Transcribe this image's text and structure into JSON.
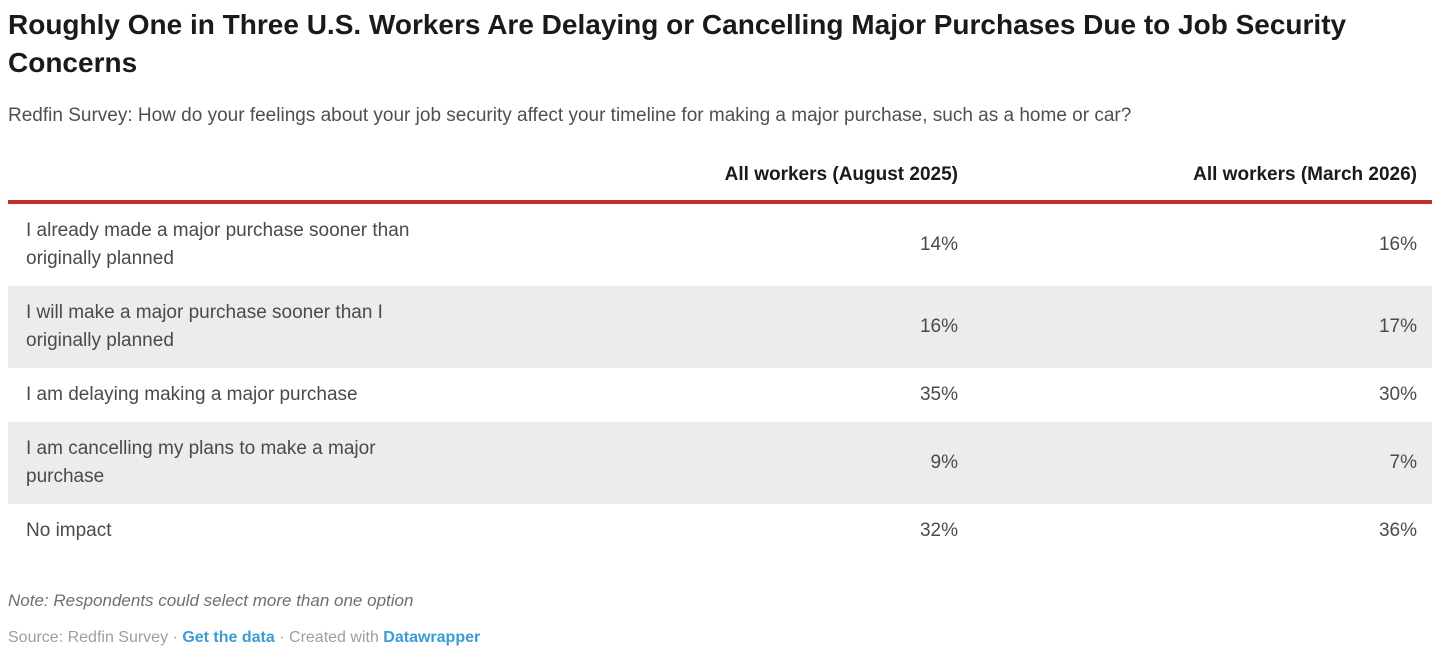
{
  "chart_data": {
    "type": "table",
    "title": "Roughly One in Three U.S. Workers Are Delaying or Cancelling Major Purchases Due to Job Security Concerns",
    "subtitle": "Redfin Survey: How do your feelings about your job security affect your timeline for making a major purchase, such as a home or car?",
    "columns": [
      "",
      "All workers (August 2025)",
      "All workers (March 2026)"
    ],
    "rows": [
      {
        "label": "I already made a major purchase sooner than originally planned",
        "values": [
          "14%",
          "16%"
        ]
      },
      {
        "label": "I will make a major purchase sooner than I originally planned",
        "values": [
          "16%",
          "17%"
        ]
      },
      {
        "label": "I am delaying making a major purchase",
        "values": [
          "35%",
          "30%"
        ]
      },
      {
        "label": "I am cancelling my plans to make a major purchase",
        "values": [
          "9%",
          "7%"
        ]
      },
      {
        "label": "No impact",
        "values": [
          "32%",
          "36%"
        ]
      }
    ],
    "note": "Note: Respondents could select more than one option",
    "source": {
      "prefix": "Source: Redfin Survey",
      "separator": "·",
      "get_data_link": "Get the data",
      "created_with": "Created with",
      "datawrapper_link": "Datawrapper"
    },
    "layout_hints": {
      "striped_rows": "even rows shaded",
      "value_alignment": "right",
      "header_rule": "thick red line below header"
    }
  },
  "colors": {
    "header_rule_red": "#c13030",
    "row_stripe_gray": "#ececec",
    "link_blue": "#3a9bd5",
    "title_text": "#1a1a1a",
    "body_text": "#4a4a4a",
    "note_text": "#6f6f6f",
    "source_text": "#9e9e9e"
  }
}
